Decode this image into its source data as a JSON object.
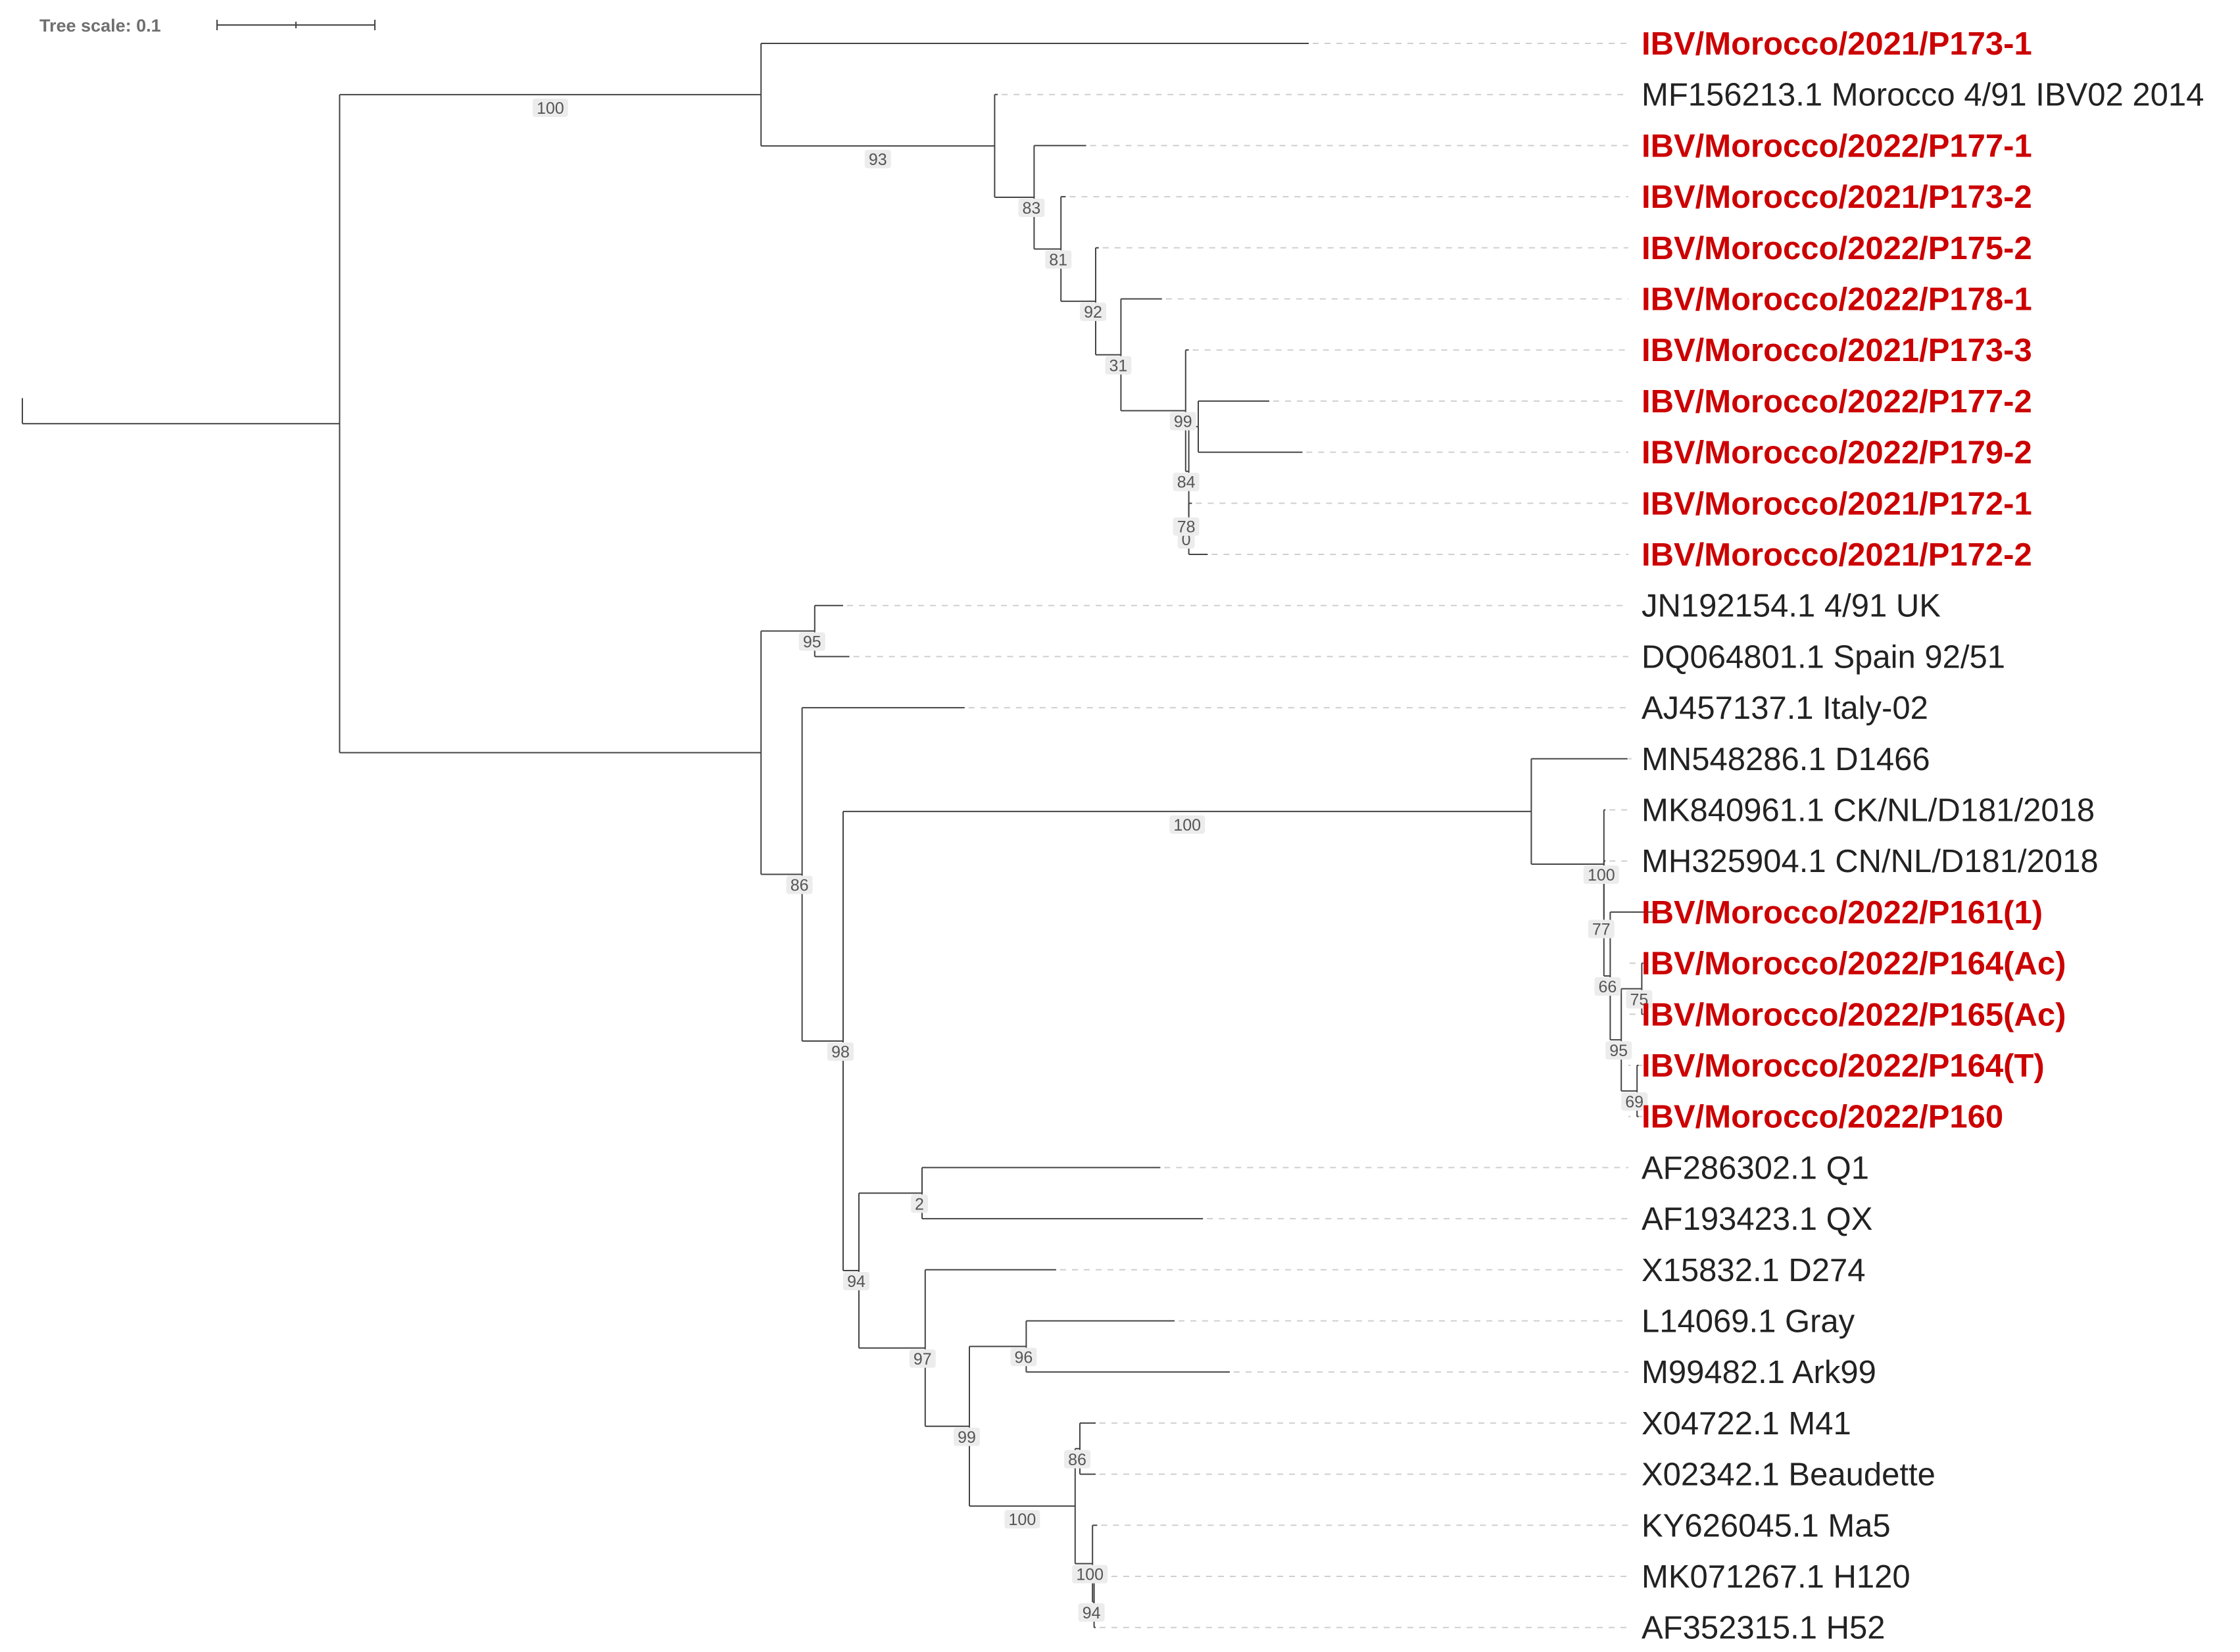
{
  "colors": {
    "branch": "#444444",
    "guide": "#cfcfcf",
    "highlight": "#cc0000",
    "normal_text": "#222222"
  },
  "tree_scale": {
    "label": "Tree scale: 0.1",
    "length": 0.1
  },
  "leaves": [
    {
      "id": "L1",
      "label": "IBV/Morocco/2021/P173-1",
      "highlight": true
    },
    {
      "id": "L2",
      "label": "MF156213.1 Morocco 4/91 IBV02 2014",
      "highlight": false
    },
    {
      "id": "L3",
      "label": "IBV/Morocco/2022/P177-1",
      "highlight": true
    },
    {
      "id": "L4",
      "label": "IBV/Morocco/2021/P173-2",
      "highlight": true
    },
    {
      "id": "L5",
      "label": "IBV/Morocco/2022/P175-2",
      "highlight": true
    },
    {
      "id": "L6",
      "label": "IBV/Morocco/2022/P178-1",
      "highlight": true
    },
    {
      "id": "L7",
      "label": "IBV/Morocco/2021/P173-3",
      "highlight": true
    },
    {
      "id": "L8",
      "label": "IBV/Morocco/2022/P177-2",
      "highlight": true
    },
    {
      "id": "L9",
      "label": "IBV/Morocco/2022/P179-2",
      "highlight": true
    },
    {
      "id": "L10",
      "label": "IBV/Morocco/2021/P172-1",
      "highlight": true
    },
    {
      "id": "L11",
      "label": "IBV/Morocco/2021/P172-2",
      "highlight": true
    },
    {
      "id": "L12",
      "label": "JN192154.1 4/91 UK",
      "highlight": false
    },
    {
      "id": "L13",
      "label": "DQ064801.1 Spain 92/51",
      "highlight": false
    },
    {
      "id": "L14",
      "label": "AJ457137.1 Italy-02",
      "highlight": false
    },
    {
      "id": "L15",
      "label": "MN548286.1 D1466",
      "highlight": false
    },
    {
      "id": "L16",
      "label": "MK840961.1 CK/NL/D181/2018",
      "highlight": false
    },
    {
      "id": "L17",
      "label": "MH325904.1 CN/NL/D181/2018",
      "highlight": false
    },
    {
      "id": "L18",
      "label": "IBV/Morocco/2022/P161(1)",
      "highlight": true
    },
    {
      "id": "L19",
      "label": "IBV/Morocco/2022/P164(Ac)",
      "highlight": true
    },
    {
      "id": "L20",
      "label": "IBV/Morocco/2022/P165(Ac)",
      "highlight": true
    },
    {
      "id": "L21",
      "label": "IBV/Morocco/2022/P164(T)",
      "highlight": true
    },
    {
      "id": "L22",
      "label": "IBV/Morocco/2022/P160",
      "highlight": true
    },
    {
      "id": "L23",
      "label": "AF286302.1 Q1",
      "highlight": false
    },
    {
      "id": "L24",
      "label": "AF193423.1 QX",
      "highlight": false
    },
    {
      "id": "L25",
      "label": "X15832.1 D274",
      "highlight": false
    },
    {
      "id": "L26",
      "label": "L14069.1 Gray",
      "highlight": false
    },
    {
      "id": "L27",
      "label": "M99482.1 Ark99",
      "highlight": false
    },
    {
      "id": "L28",
      "label": "X04722.1 M41",
      "highlight": false
    },
    {
      "id": "L29",
      "label": "X02342.1 Beaudette",
      "highlight": false
    },
    {
      "id": "L30",
      "label": "KY626045.1 Ma5",
      "highlight": false
    },
    {
      "id": "L31",
      "label": "MK071267.1 H120",
      "highlight": false
    },
    {
      "id": "L32",
      "label": "AF352315.1 H52",
      "highlight": false
    }
  ],
  "tree": {
    "name": "root",
    "bl": 0.0,
    "children": [
      {
        "name": "A",
        "bl": 0.201,
        "children": [
          {
            "name": "B",
            "bl": 0.267,
            "support": "100",
            "children": [
              {
                "leaf": "L1",
                "bl": 0.347
              },
              {
                "name": "C",
                "bl": 0.148,
                "support": "93",
                "children": [
                  {
                    "leaf": "L2",
                    "bl": 0.002
                  },
                  {
                    "name": "D",
                    "bl": 0.025,
                    "support": "83",
                    "children": [
                      {
                        "leaf": "L3",
                        "bl": 0.033
                      },
                      {
                        "name": "E",
                        "bl": 0.017,
                        "support": "81",
                        "children": [
                          {
                            "leaf": "L4",
                            "bl": 0.003
                          },
                          {
                            "name": "F",
                            "bl": 0.022,
                            "support": "92",
                            "children": [
                              {
                                "leaf": "L5",
                                "bl": 0.002
                              },
                              {
                                "name": "G",
                                "bl": 0.016,
                                "support": "31",
                                "children": [
                                  {
                                    "leaf": "L6",
                                    "bl": 0.026
                                  },
                                  {
                                    "name": "H",
                                    "bl": 0.041,
                                    "support": "99",
                                    "children": [
                                      {
                                        "leaf": "L7",
                                        "bl": 0.002
                                      },
                                      {
                                        "name": "I",
                                        "bl": 0.002,
                                        "support": "84",
                                        "children": [
                                          {
                                            "name": "J",
                                            "bl": 0.006,
                                            "children": [
                                              {
                                                "leaf": "L8",
                                                "bl": 0.045
                                              },
                                              {
                                                "leaf": "L9",
                                                "bl": 0.066
                                              }
                                            ]
                                          },
                                          {
                                            "name": "K",
                                            "bl": 0.0,
                                            "support": "78",
                                            "children": [
                                              {
                                                "leaf": "L10",
                                                "bl": 0.002
                                              },
                                              {
                                                "name": "L",
                                                "bl": 0.0,
                                                "support": "0",
                                                "children": [
                                                  {
                                                    "leaf": "L11",
                                                    "bl": 0.012
                                                  }
                                                ]
                                              }
                                            ]
                                          }
                                        ]
                                      }
                                    ]
                                  }
                                ]
                              }
                            ]
                          }
                        ]
                      }
                    ]
                  }
                ]
              }
            ]
          },
          {
            "name": "M",
            "bl": 0.267,
            "children": [
              {
                "name": "N",
                "bl": 0.034,
                "support": "95",
                "children": [
                  {
                    "leaf": "L12",
                    "bl": 0.018
                  },
                  {
                    "leaf": "L13",
                    "bl": 0.022
                  }
                ]
              },
              {
                "name": "O",
                "bl": 0.026,
                "support": "86",
                "children": [
                  {
                    "leaf": "L14",
                    "bl": 0.103
                  },
                  {
                    "name": "P",
                    "bl": 0.026,
                    "support": "98",
                    "children": [
                      {
                        "name": "Q",
                        "bl": 0.436,
                        "support": "100",
                        "children": [
                          {
                            "leaf": "L15",
                            "bl": 0.061
                          },
                          {
                            "name": "R",
                            "bl": 0.046,
                            "support": "100",
                            "children": [
                              {
                                "leaf": "L16",
                                "bl": 0.001
                              },
                              {
                                "name": "S",
                                "bl": 0.0,
                                "support": "77",
                                "children": [
                                  {
                                    "leaf": "L17",
                                    "bl": 0.001
                                  },
                                  {
                                    "name": "T",
                                    "bl": 0.004,
                                    "support": "66",
                                    "children": [
                                      {
                                        "leaf": "L18",
                                        "bl": 0.03
                                      },
                                      {
                                        "name": "U",
                                        "bl": 0.007,
                                        "support": "95",
                                        "children": [
                                          {
                                            "name": "V",
                                            "bl": 0.013,
                                            "support": "75",
                                            "children": [
                                              {
                                                "leaf": "L19",
                                                "bl": 0.001
                                              },
                                              {
                                                "leaf": "L20",
                                                "bl": 0.001
                                              }
                                            ]
                                          },
                                          {
                                            "name": "W",
                                            "bl": 0.01,
                                            "support": "69",
                                            "children": [
                                              {
                                                "leaf": "L21",
                                                "bl": 0.001
                                              },
                                              {
                                                "leaf": "L22",
                                                "bl": 0.001
                                              }
                                            ]
                                          }
                                        ]
                                      }
                                    ]
                                  }
                                ]
                              }
                            ]
                          }
                        ]
                      },
                      {
                        "name": "X",
                        "bl": 0.01,
                        "support": "94",
                        "children": [
                          {
                            "name": "Y",
                            "bl": 0.04,
                            "support": "2",
                            "children": [
                              {
                                "leaf": "L23",
                                "bl": 0.151
                              },
                              {
                                "leaf": "L24",
                                "bl": 0.178
                              }
                            ]
                          },
                          {
                            "name": "Z",
                            "bl": 0.042,
                            "support": "97",
                            "children": [
                              {
                                "leaf": "L25",
                                "bl": 0.083
                              },
                              {
                                "name": "AA",
                                "bl": 0.028,
                                "support": "99",
                                "children": [
                                  {
                                    "name": "AB",
                                    "bl": 0.036,
                                    "support": "96",
                                    "children": [
                                      {
                                        "leaf": "L26",
                                        "bl": 0.094
                                      },
                                      {
                                        "leaf": "L27",
                                        "bl": 0.129
                                      }
                                    ]
                                  },
                                  {
                                    "name": "AC",
                                    "bl": 0.067,
                                    "support": "100",
                                    "children": [
                                      {
                                        "name": "AD",
                                        "bl": 0.003,
                                        "support": "86",
                                        "children": [
                                          {
                                            "leaf": "L28",
                                            "bl": 0.01
                                          },
                                          {
                                            "leaf": "L29",
                                            "bl": 0.01
                                          }
                                        ]
                                      },
                                      {
                                        "name": "AE",
                                        "bl": 0.011,
                                        "support": "100",
                                        "children": [
                                          {
                                            "leaf": "L30",
                                            "bl": 0.003
                                          },
                                          {
                                            "name": "AF",
                                            "bl": 0.001,
                                            "support": "94",
                                            "children": [
                                              {
                                                "leaf": "L31",
                                                "bl": 0.001
                                              },
                                              {
                                                "leaf": "L32",
                                                "bl": 0.001
                                              }
                                            ]
                                          }
                                        ]
                                      }
                                    ]
                                  }
                                ]
                              }
                            ]
                          }
                        ]
                      }
                    ]
                  }
                ]
              }
            ]
          }
        ]
      }
    ]
  }
}
